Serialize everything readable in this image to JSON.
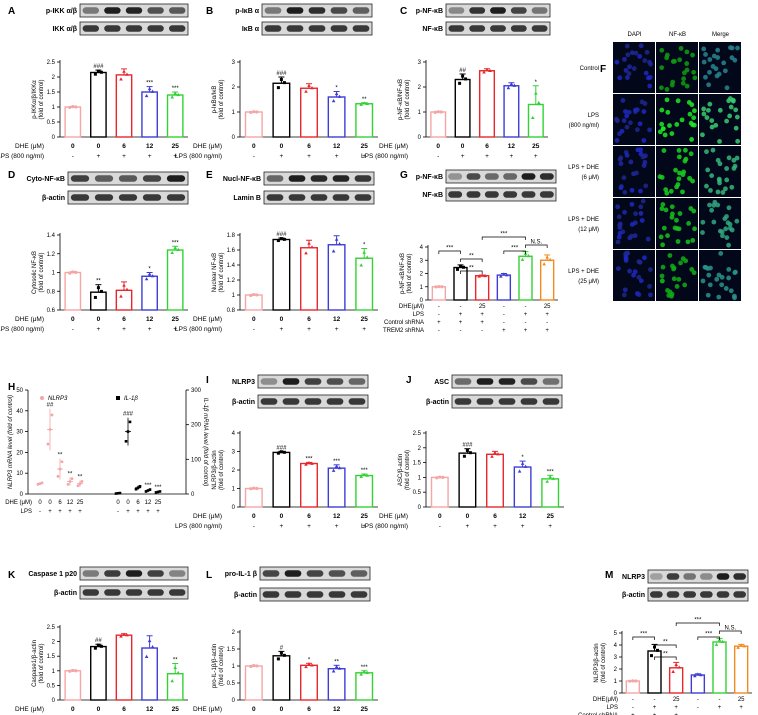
{
  "conc_labels": [
    "0",
    "0",
    "6",
    "12",
    "25"
  ],
  "lps_signs": [
    "-",
    "+",
    "+",
    "+",
    "+"
  ],
  "colors": [
    "#f4a6a6",
    "#000000",
    "#e8272d",
    "#3d3dd6",
    "#32d232"
  ],
  "colors6": [
    "#f4a6a6",
    "#000000",
    "#e8272d",
    "#3d3dd6",
    "#32d232",
    "#f28a1e"
  ],
  "dhe_label": "DHE (μM)",
  "dhe_label_short": "DHE(μM)",
  "lps_label": "LPS (800 ng/ml)",
  "lps_short": "LPS",
  "control_shrna": "Control shRNA",
  "trem2_shrna": "TREM2 shRNA",
  "panels": [
    {
      "id": "A",
      "label": "A",
      "blots": [
        "p-IKK α/β",
        "IKK α/β"
      ],
      "ylabel": "p-IKKα/β/IKKα (fold of control)",
      "ymax": 2.5,
      "yticks": [
        0,
        0.5,
        1,
        1.5,
        2,
        2.5
      ],
      "values": [
        1.0,
        2.15,
        2.07,
        1.5,
        1.4
      ],
      "errors": [
        0.02,
        0.08,
        0.2,
        0.18,
        0.1
      ],
      "stars": [
        "",
        "###",
        "",
        "***",
        "***"
      ]
    },
    {
      "id": "B",
      "label": "B",
      "blots": [
        "p-IκB α",
        "IκB α"
      ],
      "ylabel": "p-IκBα/IκB (fold of control)",
      "ymax": 3,
      "yticks": [
        0,
        1,
        2,
        3
      ],
      "values": [
        1.0,
        2.15,
        1.95,
        1.6,
        1.33
      ],
      "errors": [
        0.02,
        0.25,
        0.18,
        0.22,
        0.04
      ],
      "stars": [
        "",
        "###",
        "",
        "*",
        "**"
      ]
    },
    {
      "id": "C",
      "label": "C",
      "blots": [
        "p-NF-κB",
        "NF-κB"
      ],
      "ylabel": "p-NF-κB/NF-κB (fold of control)",
      "ymax": 3,
      "yticks": [
        0,
        1,
        2,
        3
      ],
      "values": [
        1.0,
        2.3,
        2.65,
        2.05,
        1.3
      ],
      "errors": [
        0.02,
        0.22,
        0.08,
        0.12,
        0.75
      ],
      "stars": [
        "",
        "##",
        "",
        "",
        "*"
      ]
    },
    {
      "id": "D",
      "label": "D",
      "blots": [
        "Cyto-NF-κB",
        "β-actin"
      ],
      "ylabel": "Cytosolic NF-κB (fold of control)",
      "ymin": 0.6,
      "ymax": 1.4,
      "yticks": [
        0.6,
        0.8,
        1.0,
        1.2,
        1.4
      ],
      "values": [
        1.0,
        0.79,
        0.81,
        0.96,
        1.24
      ],
      "errors": [
        0.01,
        0.08,
        0.09,
        0.04,
        0.04
      ],
      "stars": [
        "",
        "**",
        "",
        "*",
        "***"
      ]
    },
    {
      "id": "E",
      "label": "E",
      "blots": [
        "Nucl-NF-κB",
        "Lamin B"
      ],
      "ylabel": "Nuclear NF-κB (fold of control)",
      "ymin": 0.8,
      "ymax": 1.8,
      "yticks": [
        0.8,
        1.0,
        1.2,
        1.4,
        1.6,
        1.8
      ],
      "values": [
        1.0,
        1.74,
        1.63,
        1.67,
        1.49
      ],
      "errors": [
        0.01,
        0.02,
        0.1,
        0.12,
        0.13
      ],
      "stars": [
        "",
        "###",
        "",
        "",
        "*"
      ]
    },
    {
      "id": "I",
      "label": "I",
      "blots": [
        "NLRP3",
        "β-actin"
      ],
      "ylabel": "NLRP3/β-actin (fold of control)",
      "ymax": 4,
      "yticks": [
        0,
        1,
        2,
        3,
        4
      ],
      "values": [
        1.0,
        2.95,
        2.35,
        2.1,
        1.7
      ],
      "errors": [
        0.02,
        0.06,
        0.06,
        0.18,
        0.08
      ],
      "stars": [
        "",
        "###",
        "***",
        "***",
        "***"
      ]
    },
    {
      "id": "J",
      "label": "J",
      "blots": [
        "ASC",
        "β-actin"
      ],
      "ylabel": "ASC/β-actin (fold of control)",
      "ymax": 2.5,
      "yticks": [
        0,
        0.5,
        1,
        1.5,
        2,
        2.5
      ],
      "values": [
        1.0,
        1.82,
        1.78,
        1.35,
        0.95
      ],
      "errors": [
        0.02,
        0.15,
        0.1,
        0.2,
        0.12
      ],
      "stars": [
        "",
        "###",
        "",
        "*",
        "***"
      ]
    },
    {
      "id": "K",
      "label": "K",
      "blots": [
        "Caspase 1 p20",
        "β-actin"
      ],
      "ylabel": "Caspase1/β-actin (fold of control)",
      "ymax": 2.5,
      "yticks": [
        0,
        0.5,
        1,
        1.5,
        2,
        2.5
      ],
      "values": [
        1.0,
        1.83,
        2.22,
        1.78,
        0.9
      ],
      "errors": [
        0.02,
        0.08,
        0.05,
        0.42,
        0.35
      ],
      "stars": [
        "",
        "##",
        "",
        "",
        "**"
      ]
    },
    {
      "id": "L",
      "label": "L",
      "blots": [
        "pro-IL-1 β",
        "β-actin"
      ],
      "ylabel": "pro-IL-1β/β-actin (fold of control)",
      "ymax": 2.0,
      "yticks": [
        0,
        0.5,
        1.0,
        1.5,
        2.0
      ],
      "values": [
        1.0,
        1.3,
        1.02,
        0.92,
        0.8
      ],
      "errors": [
        0.02,
        0.13,
        0.06,
        0.1,
        0.06
      ],
      "stars": [
        "",
        "#",
        "*",
        "**",
        "***"
      ]
    }
  ],
  "panel_G": {
    "label": "G",
    "blots": [
      "p-NF-κB",
      "NF-κB"
    ],
    "ylabel": "p-NF-κB/NF-κB (fold of control)",
    "ymax": 4,
    "yticks": [
      0,
      1,
      2,
      3,
      4
    ],
    "values": [
      1.0,
      2.45,
      1.83,
      1.88,
      3.3,
      3.0
    ],
    "errors": [
      0.02,
      0.2,
      0.05,
      0.12,
      0.35,
      0.4
    ],
    "dhe": [
      "-",
      "-",
      "25",
      "-",
      "-",
      "25"
    ],
    "lps": [
      "-",
      "+",
      "+",
      "-",
      "+",
      "+"
    ],
    "ctrl": [
      "+",
      "+",
      "+",
      "-",
      "-",
      "-"
    ],
    "trem2": [
      "-",
      "-",
      "-",
      "+",
      "+",
      "+"
    ],
    "brackets": [
      "***",
      "**",
      "**",
      "***",
      "N.S.",
      "***"
    ]
  },
  "panel_M": {
    "label": "M",
    "blots": [
      "NLRP3",
      "β-actin"
    ],
    "ylabel": "NLRP3/β-actin (fold of control)",
    "ymax": 5,
    "yticks": [
      0,
      1,
      2,
      3,
      4,
      5
    ],
    "values": [
      1.0,
      3.5,
      2.1,
      1.5,
      4.25,
      3.9
    ],
    "errors": [
      0.02,
      0.55,
      0.45,
      0.1,
      0.3,
      0.15
    ],
    "dhe": [
      "-",
      "-",
      "25",
      "-",
      "-",
      "25"
    ],
    "lps": [
      "-",
      "+",
      "+",
      "-",
      "+",
      "+"
    ],
    "ctrl": [
      "+",
      "+",
      "+",
      "-",
      "-",
      "-"
    ],
    "trem2": [
      "-",
      "-",
      "-",
      "+",
      "+",
      "+"
    ],
    "brackets": [
      "***",
      "**",
      "**",
      "***",
      "N.S.",
      "***"
    ]
  },
  "panel_H": {
    "label": "H",
    "ylabel_left": "NLRP3 mRNA level (fold of control)",
    "ylabel_right": "IL-1β mRNA level (fold of control)",
    "legend_left": "NLRP3",
    "legend_right": "IL-1β",
    "left_max": 50,
    "left_ticks": [
      0,
      10,
      20,
      30,
      40,
      50
    ],
    "right_max": 300,
    "right_ticks": [
      0,
      100,
      200,
      300
    ],
    "nlrp3": [
      5,
      31,
      12,
      6,
      5
    ],
    "nlrp3_err": [
      0.5,
      10,
      5,
      2,
      1.5
    ],
    "il1b": [
      2,
      180,
      18,
      10,
      6
    ],
    "il1b_err": [
      1,
      40,
      6,
      4,
      2
    ],
    "nlrp3_stars": [
      "",
      "##",
      "**",
      "**",
      "**"
    ],
    "il1b_stars": [
      "",
      "###",
      "",
      "***",
      "***"
    ],
    "conc": [
      "0",
      "0",
      "6",
      "12",
      "25"
    ],
    "lps": [
      "-",
      "+",
      "+",
      "+",
      "+"
    ],
    "dhe_lbl": "DHE (μM)",
    "lps_lbl": "LPS"
  },
  "panel_F": {
    "label": "F",
    "columns": [
      "DAPI",
      "NF-κB",
      "Merge"
    ],
    "rows": [
      [
        "Control"
      ],
      [
        "LPS",
        "(800 ng/ml)"
      ],
      [
        "LPS + DHE",
        "(6 μM)"
      ],
      [
        "LPS + DHE",
        "(12 μM)"
      ],
      [
        "LPS + DHE",
        "(25 μM)"
      ]
    ],
    "nfkb_intensity": [
      0.45,
      0.95,
      0.8,
      0.7,
      0.55
    ]
  }
}
